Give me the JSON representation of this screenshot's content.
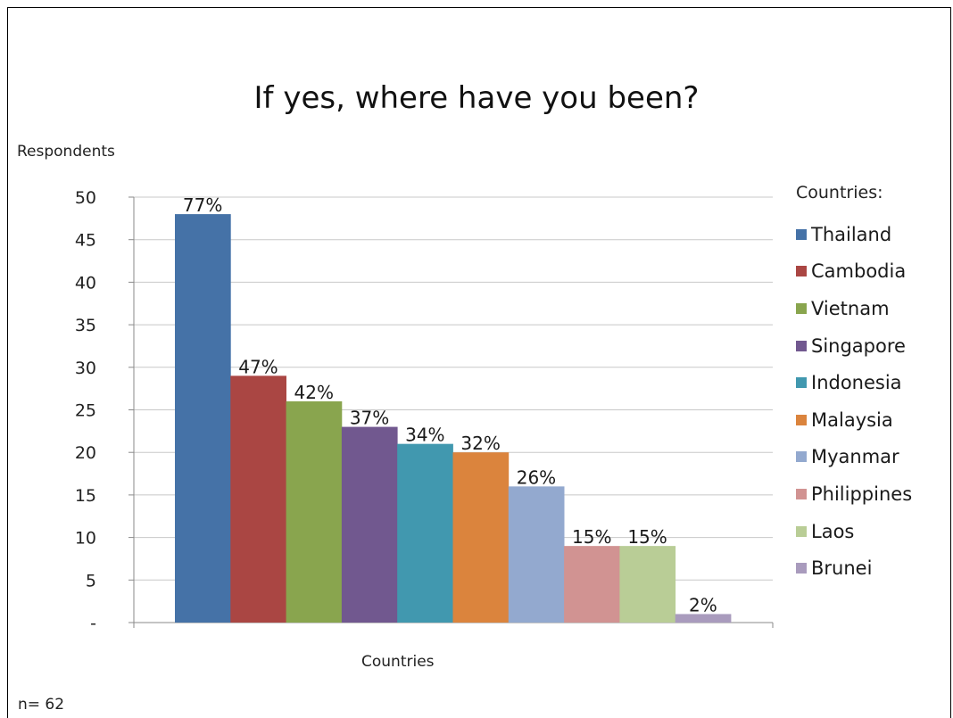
{
  "chart_data": {
    "type": "bar",
    "title": "If yes, where have you been?",
    "ylabel": "Respondents",
    "xlabel": "Countries",
    "note": "n= 62",
    "legend_title": "Countries:",
    "legend_position": "right",
    "grid": true,
    "ylim": [
      0,
      50
    ],
    "yticks": [
      {
        "value": 0,
        "label": "-"
      },
      {
        "value": 5,
        "label": "5"
      },
      {
        "value": 10,
        "label": "10"
      },
      {
        "value": 15,
        "label": "15"
      },
      {
        "value": 20,
        "label": "20"
      },
      {
        "value": 25,
        "label": "25"
      },
      {
        "value": 30,
        "label": "30"
      },
      {
        "value": 35,
        "label": "35"
      },
      {
        "value": 40,
        "label": "40"
      },
      {
        "value": 45,
        "label": "45"
      },
      {
        "value": 50,
        "label": "50"
      }
    ],
    "series": [
      {
        "name": "Thailand",
        "value": 48,
        "label": "77%",
        "color": "#4572A7"
      },
      {
        "name": "Cambodia",
        "value": 29,
        "label": "47%",
        "color": "#AA4643"
      },
      {
        "name": "Vietnam",
        "value": 26,
        "label": "42%",
        "color": "#89A54E"
      },
      {
        "name": "Singapore",
        "value": 23,
        "label": "37%",
        "color": "#71588F"
      },
      {
        "name": "Indonesia",
        "value": 21,
        "label": "34%",
        "color": "#4198AF"
      },
      {
        "name": "Malaysia",
        "value": 20,
        "label": "32%",
        "color": "#DB843D"
      },
      {
        "name": "Myanmar",
        "value": 16,
        "label": "26%",
        "color": "#93A9CF"
      },
      {
        "name": "Philippines",
        "value": 9,
        "label": "15%",
        "color": "#D19392"
      },
      {
        "name": "Laos",
        "value": 9,
        "label": "15%",
        "color": "#B9CD96"
      },
      {
        "name": "Brunei",
        "value": 1,
        "label": "2%",
        "color": "#A99BBD"
      }
    ]
  }
}
